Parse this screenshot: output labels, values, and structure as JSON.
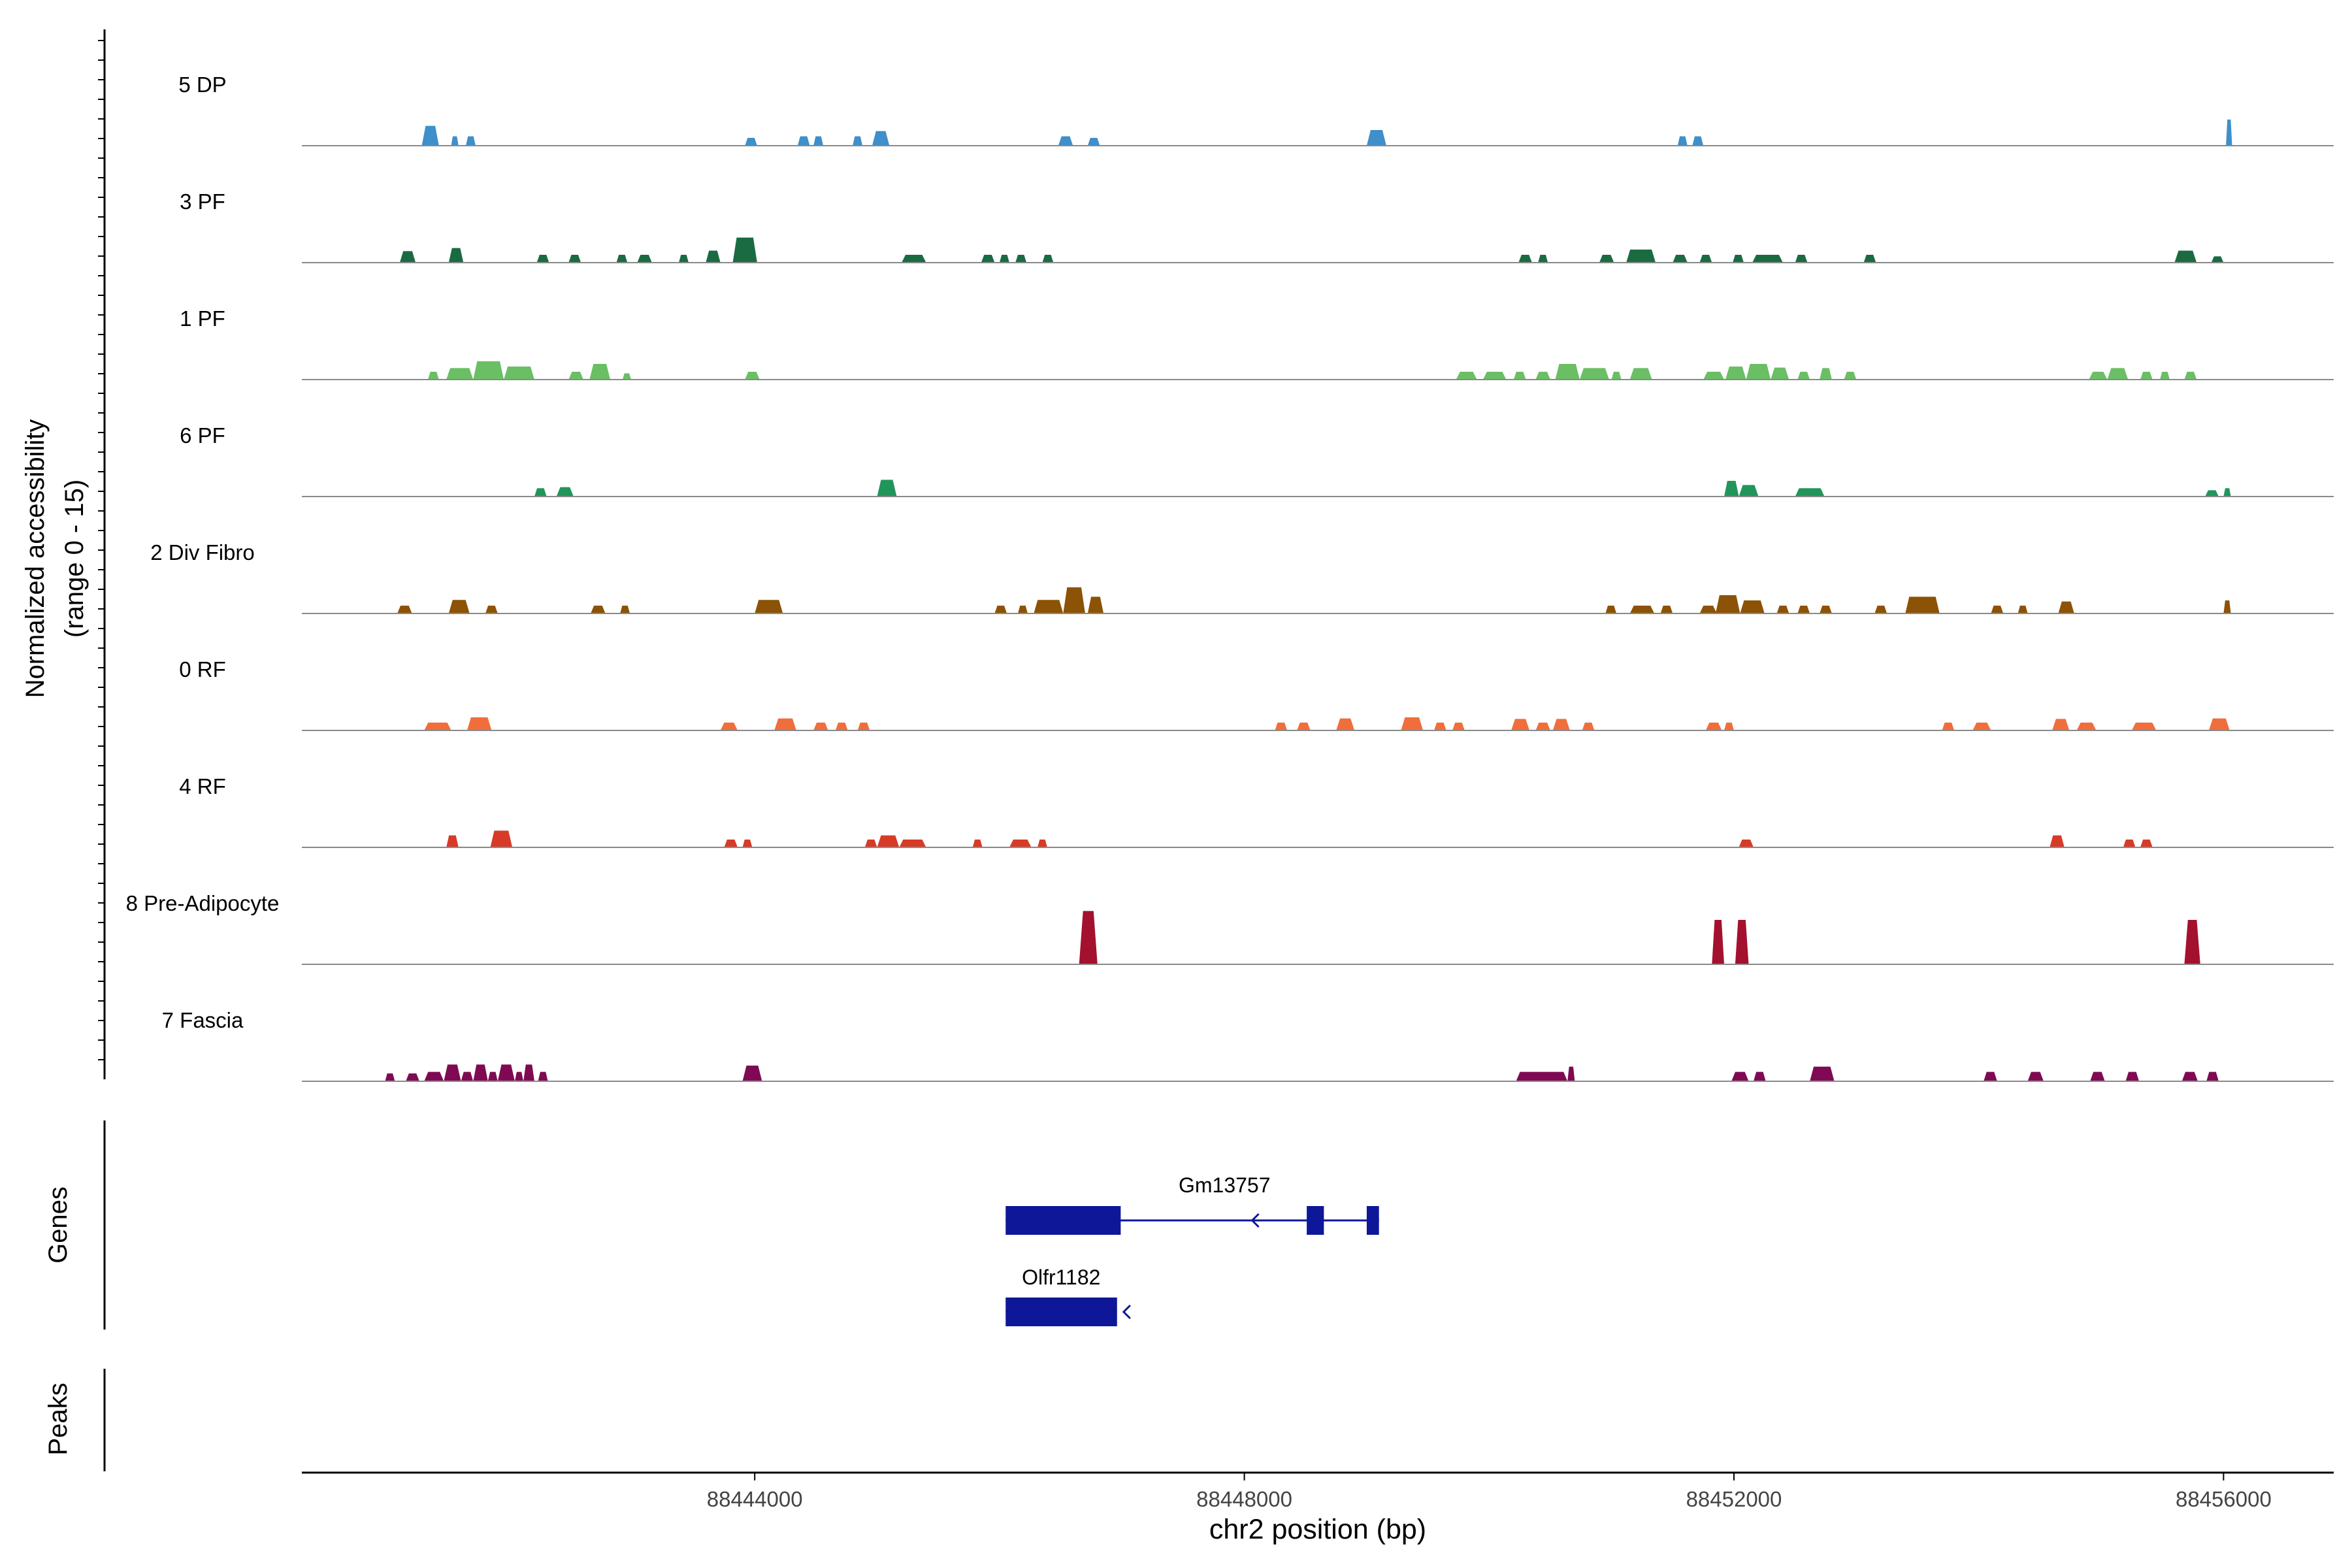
{
  "chart_data": {
    "type": "coverage-track",
    "chromosome": "chr2",
    "xlabel": "chr2 position (bp)",
    "xlim": [
      88440300,
      88456900
    ],
    "xticks": [
      88444000,
      88448000,
      88452000,
      88456000
    ],
    "xtick_labels": [
      "88444000",
      "88448000",
      "88452000",
      "88456000"
    ],
    "ylabel_line1": "Normalized accessibility",
    "ylabel_line2": "(range 0 - 15)",
    "ylim": [
      0,
      15
    ],
    "genes_label": "Genes",
    "peaks_label": "Peaks",
    "tracks": [
      {
        "name": "5 DP",
        "color": "#3e8fca",
        "peaks": [
          [
            88441280,
            88441420,
            3.8
          ],
          [
            88441520,
            88441580,
            1.8
          ],
          [
            88441640,
            88441720,
            1.8
          ],
          [
            88443920,
            88444020,
            1.5
          ],
          [
            88444350,
            88444450,
            1.8
          ],
          [
            88444480,
            88444560,
            1.8
          ],
          [
            88444800,
            88444880,
            1.8
          ],
          [
            88444960,
            88445100,
            2.8
          ],
          [
            88446480,
            88446600,
            1.8
          ],
          [
            88446720,
            88446820,
            1.5
          ],
          [
            88449000,
            88449160,
            3.0
          ],
          [
            88451540,
            88451620,
            1.8
          ],
          [
            88451660,
            88451750,
            1.8
          ],
          [
            88456020,
            88456070,
            5.0
          ]
        ]
      },
      {
        "name": "3 PF",
        "color": "#1a6b42",
        "peaks": [
          [
            88441100,
            88441230,
            2.2
          ],
          [
            88441500,
            88441620,
            2.8
          ],
          [
            88442220,
            88442320,
            1.5
          ],
          [
            88442480,
            88442580,
            1.5
          ],
          [
            88442870,
            88442960,
            1.5
          ],
          [
            88443040,
            88443160,
            1.5
          ],
          [
            88443380,
            88443460,
            1.5
          ],
          [
            88443600,
            88443720,
            2.3
          ],
          [
            88443820,
            88444020,
            4.8
          ],
          [
            88445200,
            88445400,
            1.5
          ],
          [
            88445850,
            88445960,
            1.5
          ],
          [
            88446000,
            88446080,
            1.5
          ],
          [
            88446130,
            88446220,
            1.5
          ],
          [
            88446350,
            88446440,
            1.5
          ],
          [
            88450240,
            88450350,
            1.5
          ],
          [
            88450400,
            88450480,
            1.5
          ],
          [
            88450900,
            88451020,
            1.5
          ],
          [
            88451120,
            88451360,
            2.5
          ],
          [
            88451500,
            88451620,
            1.5
          ],
          [
            88451720,
            88451820,
            1.5
          ],
          [
            88451990,
            88452080,
            1.5
          ],
          [
            88452150,
            88452400,
            1.5
          ],
          [
            88452500,
            88452600,
            1.5
          ],
          [
            88453060,
            88453160,
            1.5
          ],
          [
            88455600,
            88455780,
            2.3
          ],
          [
            88455900,
            88456000,
            1.2
          ]
        ]
      },
      {
        "name": "1 PF",
        "color": "#6abf65",
        "peaks": [
          [
            88441330,
            88441420,
            1.5
          ],
          [
            88441480,
            88441700,
            2.2
          ],
          [
            88441700,
            88441950,
            3.5
          ],
          [
            88441950,
            88442200,
            2.5
          ],
          [
            88442480,
            88442600,
            1.5
          ],
          [
            88442650,
            88442820,
            3.0
          ],
          [
            88442920,
            88442990,
            1.2
          ],
          [
            88443920,
            88444040,
            1.5
          ],
          [
            88449730,
            88449900,
            1.5
          ],
          [
            88449950,
            88450140,
            1.5
          ],
          [
            88450200,
            88450300,
            1.5
          ],
          [
            88450380,
            88450500,
            1.5
          ],
          [
            88450540,
            88450740,
            3.0
          ],
          [
            88450740,
            88450980,
            2.2
          ],
          [
            88451000,
            88451080,
            1.5
          ],
          [
            88451150,
            88451330,
            2.2
          ],
          [
            88451750,
            88451920,
            1.5
          ],
          [
            88451930,
            88452100,
            2.5
          ],
          [
            88452100,
            88452300,
            3.0
          ],
          [
            88452300,
            88452450,
            2.3
          ],
          [
            88452520,
            88452620,
            1.5
          ],
          [
            88452700,
            88452800,
            2.2
          ],
          [
            88452900,
            88453000,
            1.5
          ],
          [
            88454900,
            88455050,
            1.5
          ],
          [
            88455050,
            88455220,
            2.2
          ],
          [
            88455320,
            88455420,
            1.5
          ],
          [
            88455480,
            88455560,
            1.5
          ],
          [
            88455680,
            88455780,
            1.5
          ]
        ]
      },
      {
        "name": "6 PF",
        "color": "#21955a",
        "peaks": [
          [
            88442200,
            88442300,
            1.6
          ],
          [
            88442380,
            88442520,
            1.8
          ],
          [
            88445000,
            88445160,
            3.2
          ],
          [
            88451920,
            88452040,
            3.0
          ],
          [
            88452040,
            88452200,
            2.2
          ],
          [
            88452500,
            88452740,
            1.6
          ],
          [
            88455850,
            88455960,
            1.2
          ],
          [
            88456000,
            88456060,
            1.6
          ]
        ]
      },
      {
        "name": "2 Div Fibro",
        "color": "#8c5205",
        "peaks": [
          [
            88441080,
            88441200,
            1.5
          ],
          [
            88441500,
            88441670,
            2.6
          ],
          [
            88441800,
            88441900,
            1.5
          ],
          [
            88442660,
            88442780,
            1.5
          ],
          [
            88442900,
            88442980,
            1.5
          ],
          [
            88444000,
            88444230,
            2.6
          ],
          [
            88445960,
            88446060,
            1.5
          ],
          [
            88446150,
            88446230,
            1.5
          ],
          [
            88446280,
            88446520,
            2.6
          ],
          [
            88446520,
            88446700,
            5.0
          ],
          [
            88446720,
            88446850,
            3.2
          ],
          [
            88450950,
            88451040,
            1.5
          ],
          [
            88451150,
            88451350,
            1.5
          ],
          [
            88451400,
            88451500,
            1.5
          ],
          [
            88451720,
            88451860,
            1.5
          ],
          [
            88451850,
            88452050,
            3.5
          ],
          [
            88452050,
            88452250,
            2.5
          ],
          [
            88452350,
            88452450,
            1.5
          ],
          [
            88452520,
            88452620,
            1.5
          ],
          [
            88452700,
            88452800,
            1.5
          ],
          [
            88453150,
            88453250,
            1.5
          ],
          [
            88453400,
            88453680,
            3.2
          ],
          [
            88454100,
            88454200,
            1.5
          ],
          [
            88454320,
            88454400,
            1.5
          ],
          [
            88454650,
            88454780,
            2.3
          ],
          [
            88456000,
            88456060,
            2.5
          ]
        ]
      },
      {
        "name": "0 RF",
        "color": "#f06e3c",
        "peaks": [
          [
            88441300,
            88441520,
            1.5
          ],
          [
            88441650,
            88441850,
            2.5
          ],
          [
            88443720,
            88443860,
            1.5
          ],
          [
            88444160,
            88444340,
            2.3
          ],
          [
            88444480,
            88444600,
            1.5
          ],
          [
            88444660,
            88444760,
            1.5
          ],
          [
            88444840,
            88444940,
            1.5
          ],
          [
            88448250,
            88448350,
            1.5
          ],
          [
            88448430,
            88448540,
            1.5
          ],
          [
            88448750,
            88448900,
            2.3
          ],
          [
            88449280,
            88449460,
            2.5
          ],
          [
            88449550,
            88449650,
            1.5
          ],
          [
            88449700,
            88449800,
            1.5
          ],
          [
            88450180,
            88450330,
            2.2
          ],
          [
            88450380,
            88450500,
            1.5
          ],
          [
            88450520,
            88450660,
            2.2
          ],
          [
            88450760,
            88450860,
            1.5
          ],
          [
            88451770,
            88451900,
            1.5
          ],
          [
            88451920,
            88452000,
            1.5
          ],
          [
            88453700,
            88453800,
            1.5
          ],
          [
            88453950,
            88454100,
            1.5
          ],
          [
            88454600,
            88454740,
            2.2
          ],
          [
            88454800,
            88454960,
            1.5
          ],
          [
            88455250,
            88455450,
            1.5
          ],
          [
            88455880,
            88456050,
            2.3
          ]
        ]
      },
      {
        "name": "4 RF",
        "color": "#d73b27",
        "peaks": [
          [
            88441480,
            88441580,
            2.3
          ],
          [
            88441840,
            88442020,
            3.2
          ],
          [
            88443750,
            88443860,
            1.5
          ],
          [
            88443900,
            88443980,
            1.5
          ],
          [
            88444900,
            88445000,
            1.5
          ],
          [
            88445000,
            88445180,
            2.3
          ],
          [
            88445180,
            88445400,
            1.5
          ],
          [
            88445780,
            88445860,
            1.5
          ],
          [
            88446080,
            88446260,
            1.5
          ],
          [
            88446310,
            88446390,
            1.5
          ],
          [
            88452040,
            88452160,
            1.5
          ],
          [
            88454580,
            88454700,
            2.3
          ],
          [
            88455180,
            88455280,
            1.5
          ],
          [
            88455320,
            88455420,
            1.5
          ]
        ]
      },
      {
        "name": "8 Pre-Adipocyte",
        "color": "#a3112e",
        "peaks": [
          [
            88446650,
            88446800,
            10.2
          ],
          [
            88451820,
            88451920,
            8.5
          ],
          [
            88452010,
            88452120,
            8.5
          ],
          [
            88455680,
            88455810,
            8.5
          ]
        ]
      },
      {
        "name": "7 Fascia",
        "color": "#7f0a53",
        "peaks": [
          [
            88440980,
            88441060,
            1.5
          ],
          [
            88441150,
            88441260,
            1.5
          ],
          [
            88441300,
            88441460,
            1.8
          ],
          [
            88441460,
            88441600,
            3.2
          ],
          [
            88441600,
            88441700,
            1.8
          ],
          [
            88441700,
            88441820,
            3.2
          ],
          [
            88441820,
            88441900,
            1.8
          ],
          [
            88441900,
            88442040,
            3.2
          ],
          [
            88442040,
            88442110,
            1.8
          ],
          [
            88442110,
            88442200,
            3.2
          ],
          [
            88442230,
            88442310,
            1.8
          ],
          [
            88443900,
            88444060,
            3.0
          ],
          [
            88450220,
            88450640,
            1.8
          ],
          [
            88450640,
            88450700,
            2.8
          ],
          [
            88451980,
            88452120,
            1.8
          ],
          [
            88452160,
            88452260,
            1.8
          ],
          [
            88452620,
            88452820,
            2.8
          ],
          [
            88454040,
            88454150,
            1.8
          ],
          [
            88454400,
            88454530,
            1.8
          ],
          [
            88454910,
            88455030,
            1.8
          ],
          [
            88455200,
            88455310,
            1.8
          ],
          [
            88455660,
            88455790,
            1.8
          ],
          [
            88455860,
            88455960,
            1.8
          ]
        ]
      }
    ],
    "genes": [
      {
        "name": "Gm13757",
        "row": 0,
        "strand": "-",
        "start": 88446050,
        "end": 88449100,
        "exons": [
          [
            88446050,
            88446990
          ],
          [
            88448510,
            88448650
          ],
          [
            88449000,
            88449100
          ]
        ],
        "arrows": [
          88446800,
          88448000
        ]
      },
      {
        "name": "Olfr1182",
        "row": 1,
        "strand": "-",
        "start": 88446050,
        "end": 88446960,
        "exons": [
          [
            88446050,
            88446960
          ]
        ],
        "arrows": [
          88446950
        ]
      }
    ],
    "gene_color": "#0e1798",
    "peaks_track": []
  }
}
